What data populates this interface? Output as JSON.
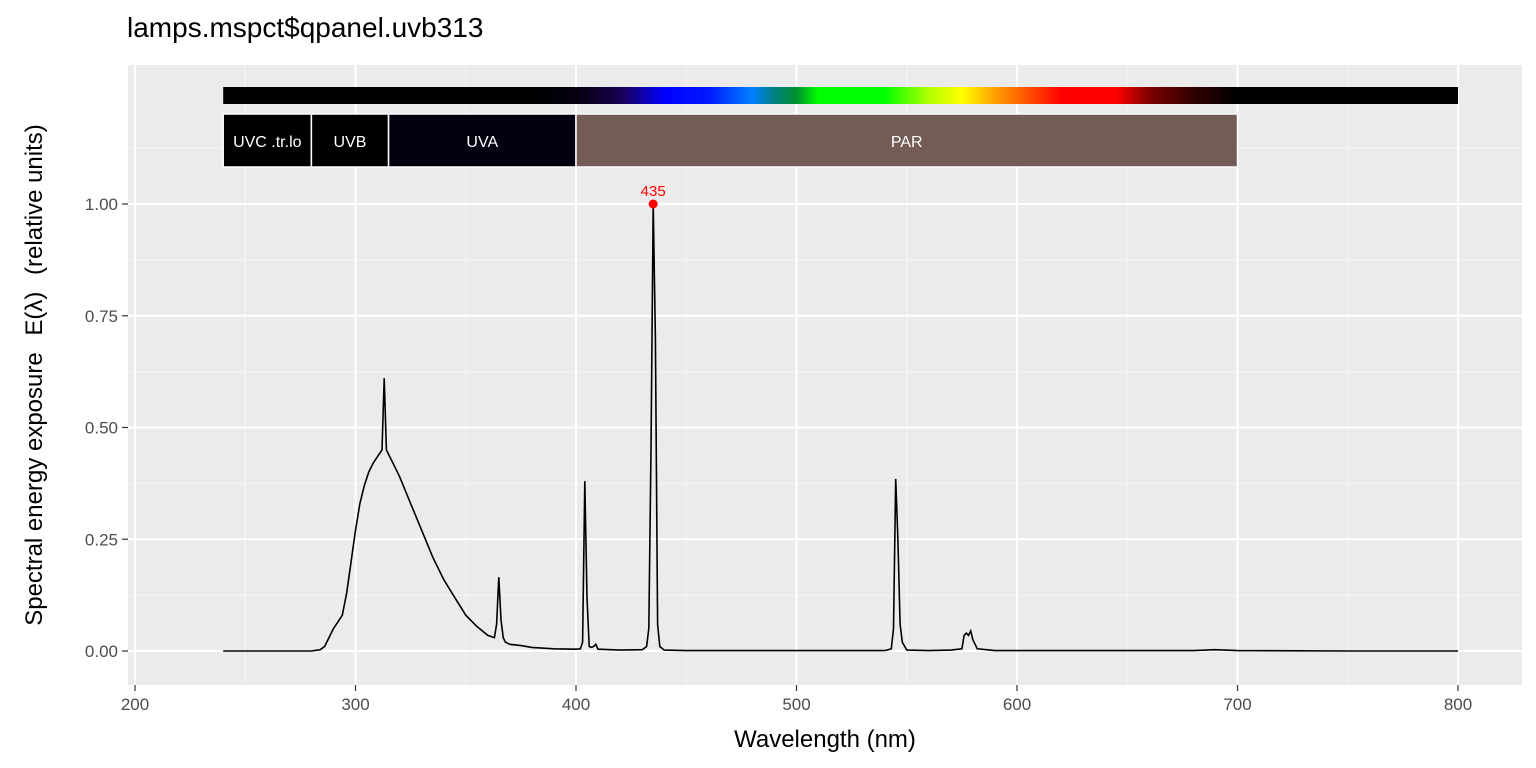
{
  "chart_data": {
    "type": "line",
    "title": "lamps.mspct$qpanel.uvb313",
    "xlabel": "Wavelength (nm)",
    "ylabel_prefix": "Spectral energy exposure",
    "ylabel_symbol": "E(λ)",
    "ylabel_suffix": "(relative units)",
    "xlim": [
      200,
      800
    ],
    "ylim": [
      0,
      1.3
    ],
    "x_ticks": [
      "200",
      "300",
      "400",
      "500",
      "600",
      "700",
      "800"
    ],
    "y_ticks": [
      "0.00",
      "0.25",
      "0.50",
      "0.75",
      "1.00"
    ],
    "grid": true,
    "background_color": "#ebebeb",
    "line_color": "#000000",
    "peak": {
      "x": 435,
      "y": 1.0,
      "label": "435",
      "color": "#ff0000"
    },
    "wavebands": [
      {
        "label": "UVC .tr.lo",
        "from": 240,
        "to": 280,
        "color": "#000000"
      },
      {
        "label": "UVB",
        "from": 280,
        "to": 315,
        "color": "#000000"
      },
      {
        "label": "UVA",
        "from": 315,
        "to": 400,
        "color": "#02010f"
      },
      {
        "label": "PAR",
        "from": 400,
        "to": 700,
        "color": "#735c56"
      }
    ],
    "color_strip_range": [
      240,
      800
    ],
    "series": [
      {
        "x": [
          240,
          250,
          260,
          270,
          280,
          284,
          286,
          288,
          290,
          292,
          294,
          296,
          298,
          300,
          302,
          304,
          306,
          308,
          310,
          312,
          313,
          314,
          316,
          318,
          320,
          325,
          330,
          335,
          340,
          345,
          350,
          355,
          360,
          363,
          364,
          365,
          366,
          367,
          368,
          370,
          375,
          380,
          390,
          400,
          402,
          403,
          404,
          405,
          406,
          407,
          408,
          409,
          410,
          420,
          430,
          432,
          433,
          434,
          435,
          436,
          437,
          438,
          440,
          450,
          500,
          540,
          543,
          544,
          545,
          546,
          547,
          548,
          550,
          560,
          570,
          575,
          576,
          577,
          578,
          579,
          580,
          582,
          590,
          600,
          650,
          680,
          690,
          700,
          750,
          800
        ],
        "y": [
          0.0,
          0.0,
          0.0,
          0.0,
          0.0,
          0.003,
          0.01,
          0.03,
          0.05,
          0.065,
          0.08,
          0.13,
          0.2,
          0.27,
          0.33,
          0.37,
          0.4,
          0.42,
          0.435,
          0.45,
          0.61,
          0.45,
          0.43,
          0.41,
          0.39,
          0.33,
          0.27,
          0.21,
          0.16,
          0.12,
          0.08,
          0.055,
          0.035,
          0.03,
          0.06,
          0.165,
          0.07,
          0.03,
          0.02,
          0.015,
          0.012,
          0.008,
          0.005,
          0.004,
          0.005,
          0.02,
          0.38,
          0.12,
          0.01,
          0.008,
          0.01,
          0.015,
          0.004,
          0.002,
          0.003,
          0.01,
          0.05,
          0.45,
          1.0,
          0.7,
          0.06,
          0.01,
          0.002,
          0.001,
          0.001,
          0.001,
          0.005,
          0.05,
          0.385,
          0.25,
          0.06,
          0.02,
          0.002,
          0.001,
          0.002,
          0.005,
          0.035,
          0.04,
          0.035,
          0.045,
          0.025,
          0.005,
          0.001,
          0.001,
          0.001,
          0.001,
          0.003,
          0.001,
          0.0,
          0.0
        ]
      }
    ]
  }
}
